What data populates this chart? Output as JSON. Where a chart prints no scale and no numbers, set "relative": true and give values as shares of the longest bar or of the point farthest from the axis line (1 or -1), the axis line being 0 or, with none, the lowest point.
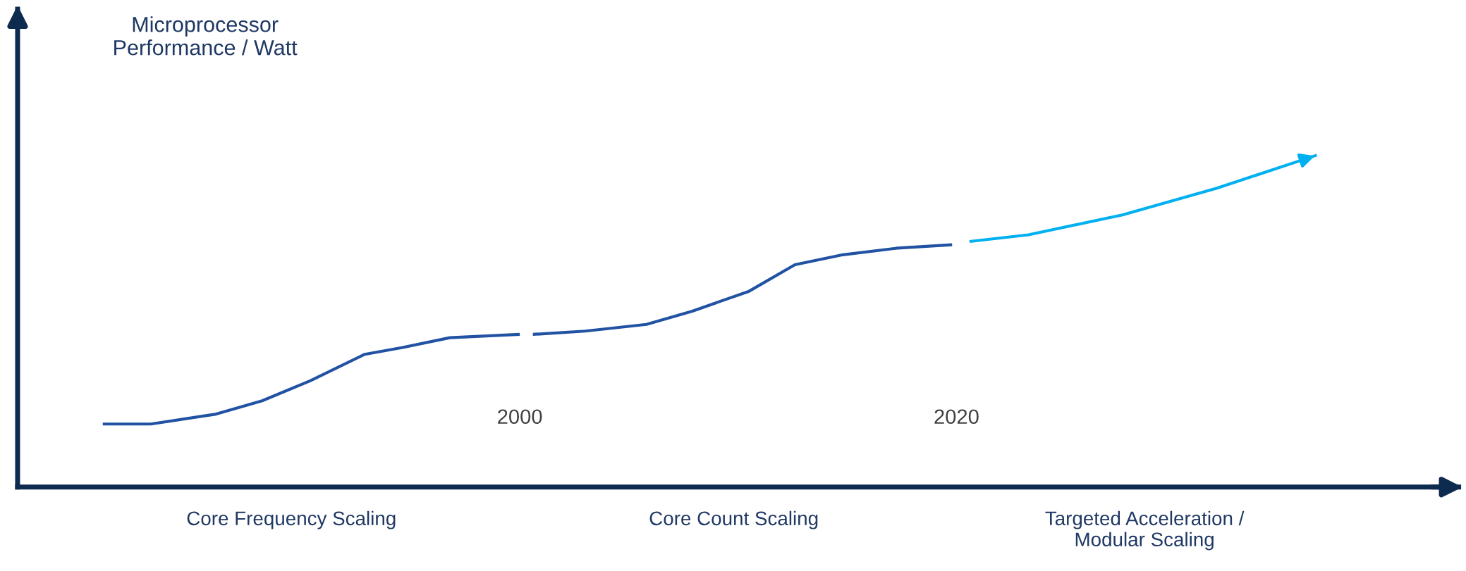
{
  "chart_data": {
    "type": "line",
    "relative": true,
    "ylabel": "Microprocessor\nPerformance / Watt",
    "xlim": [
      1977,
      2043
    ],
    "xticks": [
      2000,
      2020
    ],
    "tick_labels": "x",
    "grid": false,
    "legend": false,
    "marker": "none",
    "line_style": "solid",
    "series": [
      {
        "color": "#2152a3",
        "x": [
          1980.9,
          1983.1,
          1986.1,
          1988.2,
          1990.4,
          1992.9,
          1994.6,
          1996.8,
          2000
        ],
        "values": [
          0.19,
          0.19,
          0.22,
          0.26,
          0.32,
          0.4,
          0.42,
          0.45,
          0.46
        ]
      },
      {
        "color": "#2152a3",
        "x": [
          2000.6,
          2003,
          2005.8,
          2007.9,
          2010.5,
          2012.6,
          2014.8,
          2017.3,
          2019.8
        ],
        "values": [
          0.46,
          0.47,
          0.49,
          0.53,
          0.59,
          0.67,
          0.7,
          0.72,
          0.73
        ]
      },
      {
        "color": "#00b0f0",
        "x": [
          2020.6,
          2023.3,
          2027.6,
          2031.9,
          2036.5
        ],
        "values": [
          0.74,
          0.76,
          0.82,
          0.9,
          1.0
        ]
      }
    ],
    "annotations": [
      "Core Frequency Scaling",
      "Core Count Scaling",
      "Targeted Acceleration /\nModular Scaling"
    ]
  }
}
